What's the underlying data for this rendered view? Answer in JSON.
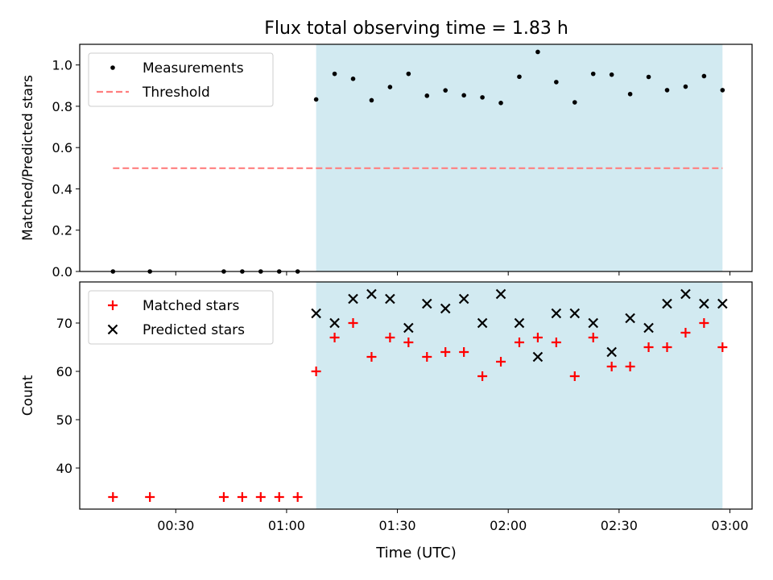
{
  "chart_data": {
    "type": "scatter",
    "title": "Flux total observing time = 1.83 h",
    "xlabel": "Time (UTC)",
    "x_ticks": [
      "00:30",
      "01:00",
      "01:30",
      "02:00",
      "02:30",
      "03:00"
    ],
    "shaded_span": {
      "start": "01:08",
      "end": "02:58",
      "color": "#add8e6"
    },
    "colors": {
      "measurements": "#000000",
      "threshold": "#ff7f7f",
      "matched": "#ff0000",
      "predicted": "#000000"
    },
    "panels": [
      {
        "ylabel": "Matched/Predicted stars",
        "ylim": [
          0,
          1.1
        ],
        "y_ticks": [
          "0.0",
          "0.2",
          "0.4",
          "0.6",
          "0.8",
          "1.0"
        ],
        "legend": {
          "placement": "top-left",
          "entries": [
            "Measurements",
            "Threshold"
          ]
        },
        "series": [
          {
            "name": "Measurements",
            "kind": "points",
            "x": [
              "00:13",
              "00:23",
              "00:43",
              "00:48",
              "00:53",
              "00:58",
              "01:03",
              "01:08",
              "01:13",
              "01:18",
              "01:23",
              "01:28",
              "01:33",
              "01:38",
              "01:43",
              "01:48",
              "01:53",
              "01:58",
              "02:03",
              "02:08",
              "02:13",
              "02:18",
              "02:23",
              "02:28",
              "02:33",
              "02:38",
              "02:43",
              "02:48",
              "02:53",
              "02:58"
            ],
            "y": [
              0,
              0,
              0,
              0,
              0,
              0,
              0,
              0.833,
              0.957,
              0.933,
              0.829,
              0.893,
              0.957,
              0.851,
              0.877,
              0.853,
              0.843,
              0.816,
              0.943,
              1.063,
              0.917,
              0.819,
              0.957,
              0.953,
              0.859,
              0.942,
              0.878,
              0.895,
              0.946,
              0.878
            ]
          },
          {
            "name": "Threshold",
            "kind": "dashed-line",
            "x": [
              "00:13",
              "02:58"
            ],
            "y": [
              0.5,
              0.5
            ]
          }
        ]
      },
      {
        "ylabel": "Count",
        "ylim": [
          31.5,
          78.5
        ],
        "y_ticks": [
          "40",
          "50",
          "60",
          "70"
        ],
        "legend": {
          "placement": "top-left",
          "entries": [
            "Matched stars",
            "Predicted stars"
          ]
        },
        "series": [
          {
            "name": "Matched stars",
            "kind": "plus",
            "x": [
              "00:13",
              "00:23",
              "00:43",
              "00:48",
              "00:53",
              "00:58",
              "01:03",
              "01:08",
              "01:13",
              "01:18",
              "01:23",
              "01:28",
              "01:33",
              "01:38",
              "01:43",
              "01:48",
              "01:53",
              "01:58",
              "02:03",
              "02:08",
              "02:13",
              "02:18",
              "02:23",
              "02:28",
              "02:33",
              "02:38",
              "02:43",
              "02:48",
              "02:53",
              "02:58"
            ],
            "y": [
              34,
              34,
              34,
              34,
              34,
              34,
              34,
              60,
              67,
              70,
              63,
              67,
              66,
              63,
              64,
              64,
              59,
              62,
              66,
              67,
              66,
              59,
              67,
              61,
              61,
              65,
              65,
              68,
              70,
              65
            ]
          },
          {
            "name": "Predicted stars",
            "kind": "x",
            "x": [
              "01:08",
              "01:13",
              "01:18",
              "01:23",
              "01:28",
              "01:33",
              "01:38",
              "01:43",
              "01:48",
              "01:53",
              "01:58",
              "02:03",
              "02:08",
              "02:13",
              "02:18",
              "02:23",
              "02:28",
              "02:33",
              "02:38",
              "02:43",
              "02:48",
              "02:53",
              "02:58"
            ],
            "y": [
              72,
              70,
              75,
              76,
              75,
              69,
              74,
              73,
              75,
              70,
              76,
              70,
              63,
              72,
              72,
              70,
              64,
              71,
              69,
              74,
              76,
              74,
              74
            ]
          }
        ]
      }
    ]
  }
}
